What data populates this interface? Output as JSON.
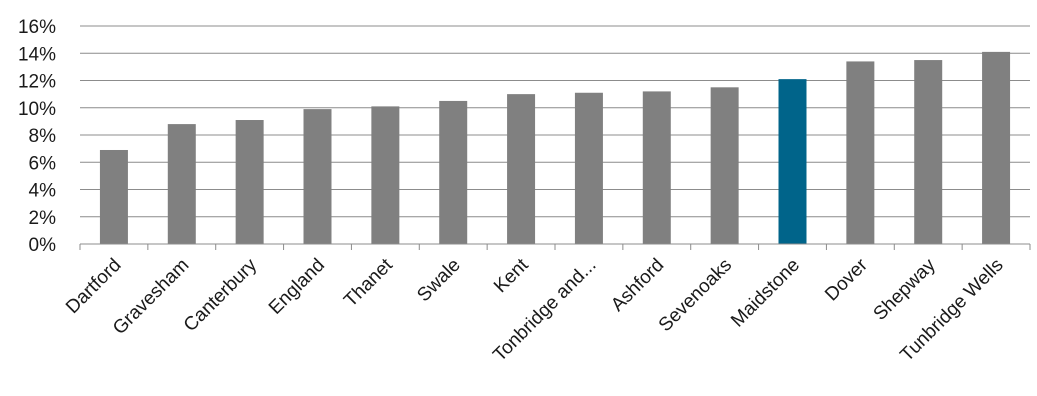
{
  "chart_data": {
    "type": "bar",
    "categories": [
      "Dartford",
      "Gravesham",
      "Canterbury",
      "England",
      "Thanet",
      "Swale",
      "Kent",
      "Tonbridge and...",
      "Ashford",
      "Sevenoaks",
      "Maidstone",
      "Dover",
      "Shepway",
      "Tunbridge Wells"
    ],
    "values": [
      6.9,
      8.8,
      9.1,
      9.9,
      10.1,
      10.5,
      11.0,
      11.1,
      11.2,
      11.5,
      12.1,
      13.4,
      13.5,
      14.1
    ],
    "value_unit": "%",
    "ylim": [
      0,
      16
    ],
    "yticks": [
      "0%",
      "2%",
      "4%",
      "6%",
      "8%",
      "10%",
      "12%",
      "14%",
      "16%"
    ],
    "ytick_values": [
      0,
      2,
      4,
      6,
      8,
      10,
      12,
      14,
      16
    ],
    "grid": true,
    "legend": "none",
    "colors": {
      "default_bar": "#808080",
      "highlight_bar": "#00648a",
      "grid": "#8c8c8c"
    },
    "highlight_category": "Maidstone"
  }
}
